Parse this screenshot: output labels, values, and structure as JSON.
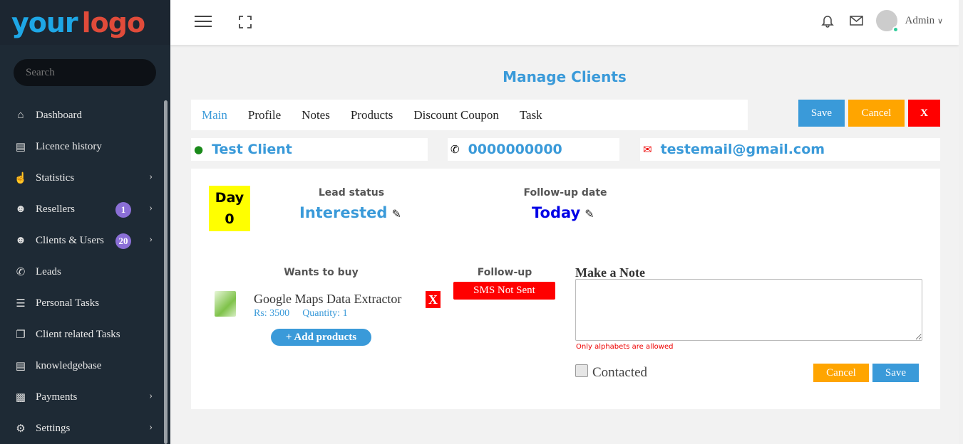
{
  "sidebar": {
    "logo_part1": "your",
    "logo_part2": "logo",
    "search_placeholder": "Search",
    "items": [
      {
        "label": "Dashboard",
        "icon": "home-icon"
      },
      {
        "label": "Licence history",
        "icon": "book-icon"
      },
      {
        "label": "Statistics",
        "icon": "hand-pointer-icon",
        "chevron": true
      },
      {
        "label": "Resellers",
        "icon": "users-icon",
        "badge": "1",
        "chevron": true
      },
      {
        "label": "Clients & Users",
        "icon": "users-icon",
        "badge": "20",
        "chevron": true
      },
      {
        "label": "Leads",
        "icon": "phone-icon"
      },
      {
        "label": "Personal Tasks",
        "icon": "list-icon"
      },
      {
        "label": "Client related Tasks",
        "icon": "copy-icon"
      },
      {
        "label": "knowledgebase",
        "icon": "book-icon"
      },
      {
        "label": "Payments",
        "icon": "money-icon",
        "chevron": true
      },
      {
        "label": "Settings",
        "icon": "gear-icon",
        "chevron": true
      }
    ]
  },
  "header": {
    "user": "Admin"
  },
  "page": {
    "title": "Manage Clients",
    "tabs": [
      "Main",
      "Profile",
      "Notes",
      "Products",
      "Discount Coupon",
      "Task"
    ],
    "save": "Save",
    "cancel": "Cancel",
    "close": "X"
  },
  "client": {
    "name": "Test Client",
    "phone": "0000000000",
    "email": "testemail@gmail.com"
  },
  "lead": {
    "day_label": "Day",
    "day_value": "0",
    "status_label": "Lead status",
    "status": "Interested",
    "followup_date_label": "Follow-up date",
    "followup_date": "Today"
  },
  "products": {
    "label": "Wants to buy",
    "items": [
      {
        "name": "Google Maps Data Extractor",
        "price": "Rs: 3500",
        "quantity": "Quantity: 1",
        "remove": "X"
      }
    ],
    "add": "+ Add products"
  },
  "followup": {
    "label": "Follow-up",
    "sms_status": "SMS Not Sent"
  },
  "note": {
    "label": "Make a Note",
    "hint": "Only alphabets are allowed",
    "contacted": "Contacted",
    "cancel": "Cancel",
    "save": "Save"
  },
  "colors": {
    "accent": "#3a9ad9",
    "warning": "#ffa500",
    "danger": "#ff0000",
    "sidebar": "#1e2a35"
  }
}
